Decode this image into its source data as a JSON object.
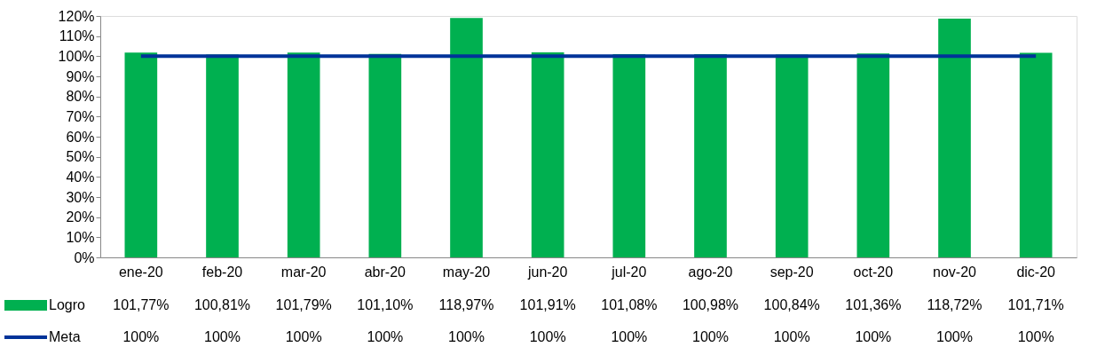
{
  "chart_data": {
    "type": "bar",
    "categories": [
      "ene-20",
      "feb-20",
      "mar-20",
      "abr-20",
      "may-20",
      "jun-20",
      "jul-20",
      "ago-20",
      "sep-20",
      "oct-20",
      "nov-20",
      "dic-20"
    ],
    "series": [
      {
        "name": "Logro",
        "color": "#00b050",
        "values": [
          101.77,
          100.81,
          101.79,
          101.1,
          118.97,
          101.91,
          101.08,
          100.98,
          100.84,
          101.36,
          118.72,
          101.71
        ],
        "value_labels": [
          "101,77%",
          "100,81%",
          "101,79%",
          "101,10%",
          "118,97%",
          "101,91%",
          "101,08%",
          "100,98%",
          "100,84%",
          "101,36%",
          "118,72%",
          "101,71%"
        ]
      },
      {
        "name": "Meta",
        "type": "line",
        "color": "#003399",
        "values": [
          100,
          100,
          100,
          100,
          100,
          100,
          100,
          100,
          100,
          100,
          100,
          100
        ],
        "value_labels": [
          "100%",
          "100%",
          "100%",
          "100%",
          "100%",
          "100%",
          "100%",
          "100%",
          "100%",
          "100%",
          "100%",
          "100%"
        ]
      }
    ],
    "ylim": [
      0,
      120
    ],
    "yticks": [
      {
        "value": 0,
        "label": "0%"
      },
      {
        "value": 10,
        "label": "10%"
      },
      {
        "value": 20,
        "label": "20%"
      },
      {
        "value": 30,
        "label": "30%"
      },
      {
        "value": 40,
        "label": "40%"
      },
      {
        "value": 50,
        "label": "50%"
      },
      {
        "value": 60,
        "label": "60%"
      },
      {
        "value": 70,
        "label": "70%"
      },
      {
        "value": 80,
        "label": "80%"
      },
      {
        "value": 90,
        "label": "90%"
      },
      {
        "value": 100,
        "label": "100%"
      },
      {
        "value": 110,
        "label": "110%"
      },
      {
        "value": 120,
        "label": "120%"
      }
    ],
    "grid": false,
    "legend": "bottom left",
    "marker": "none",
    "line_style": "solid"
  }
}
